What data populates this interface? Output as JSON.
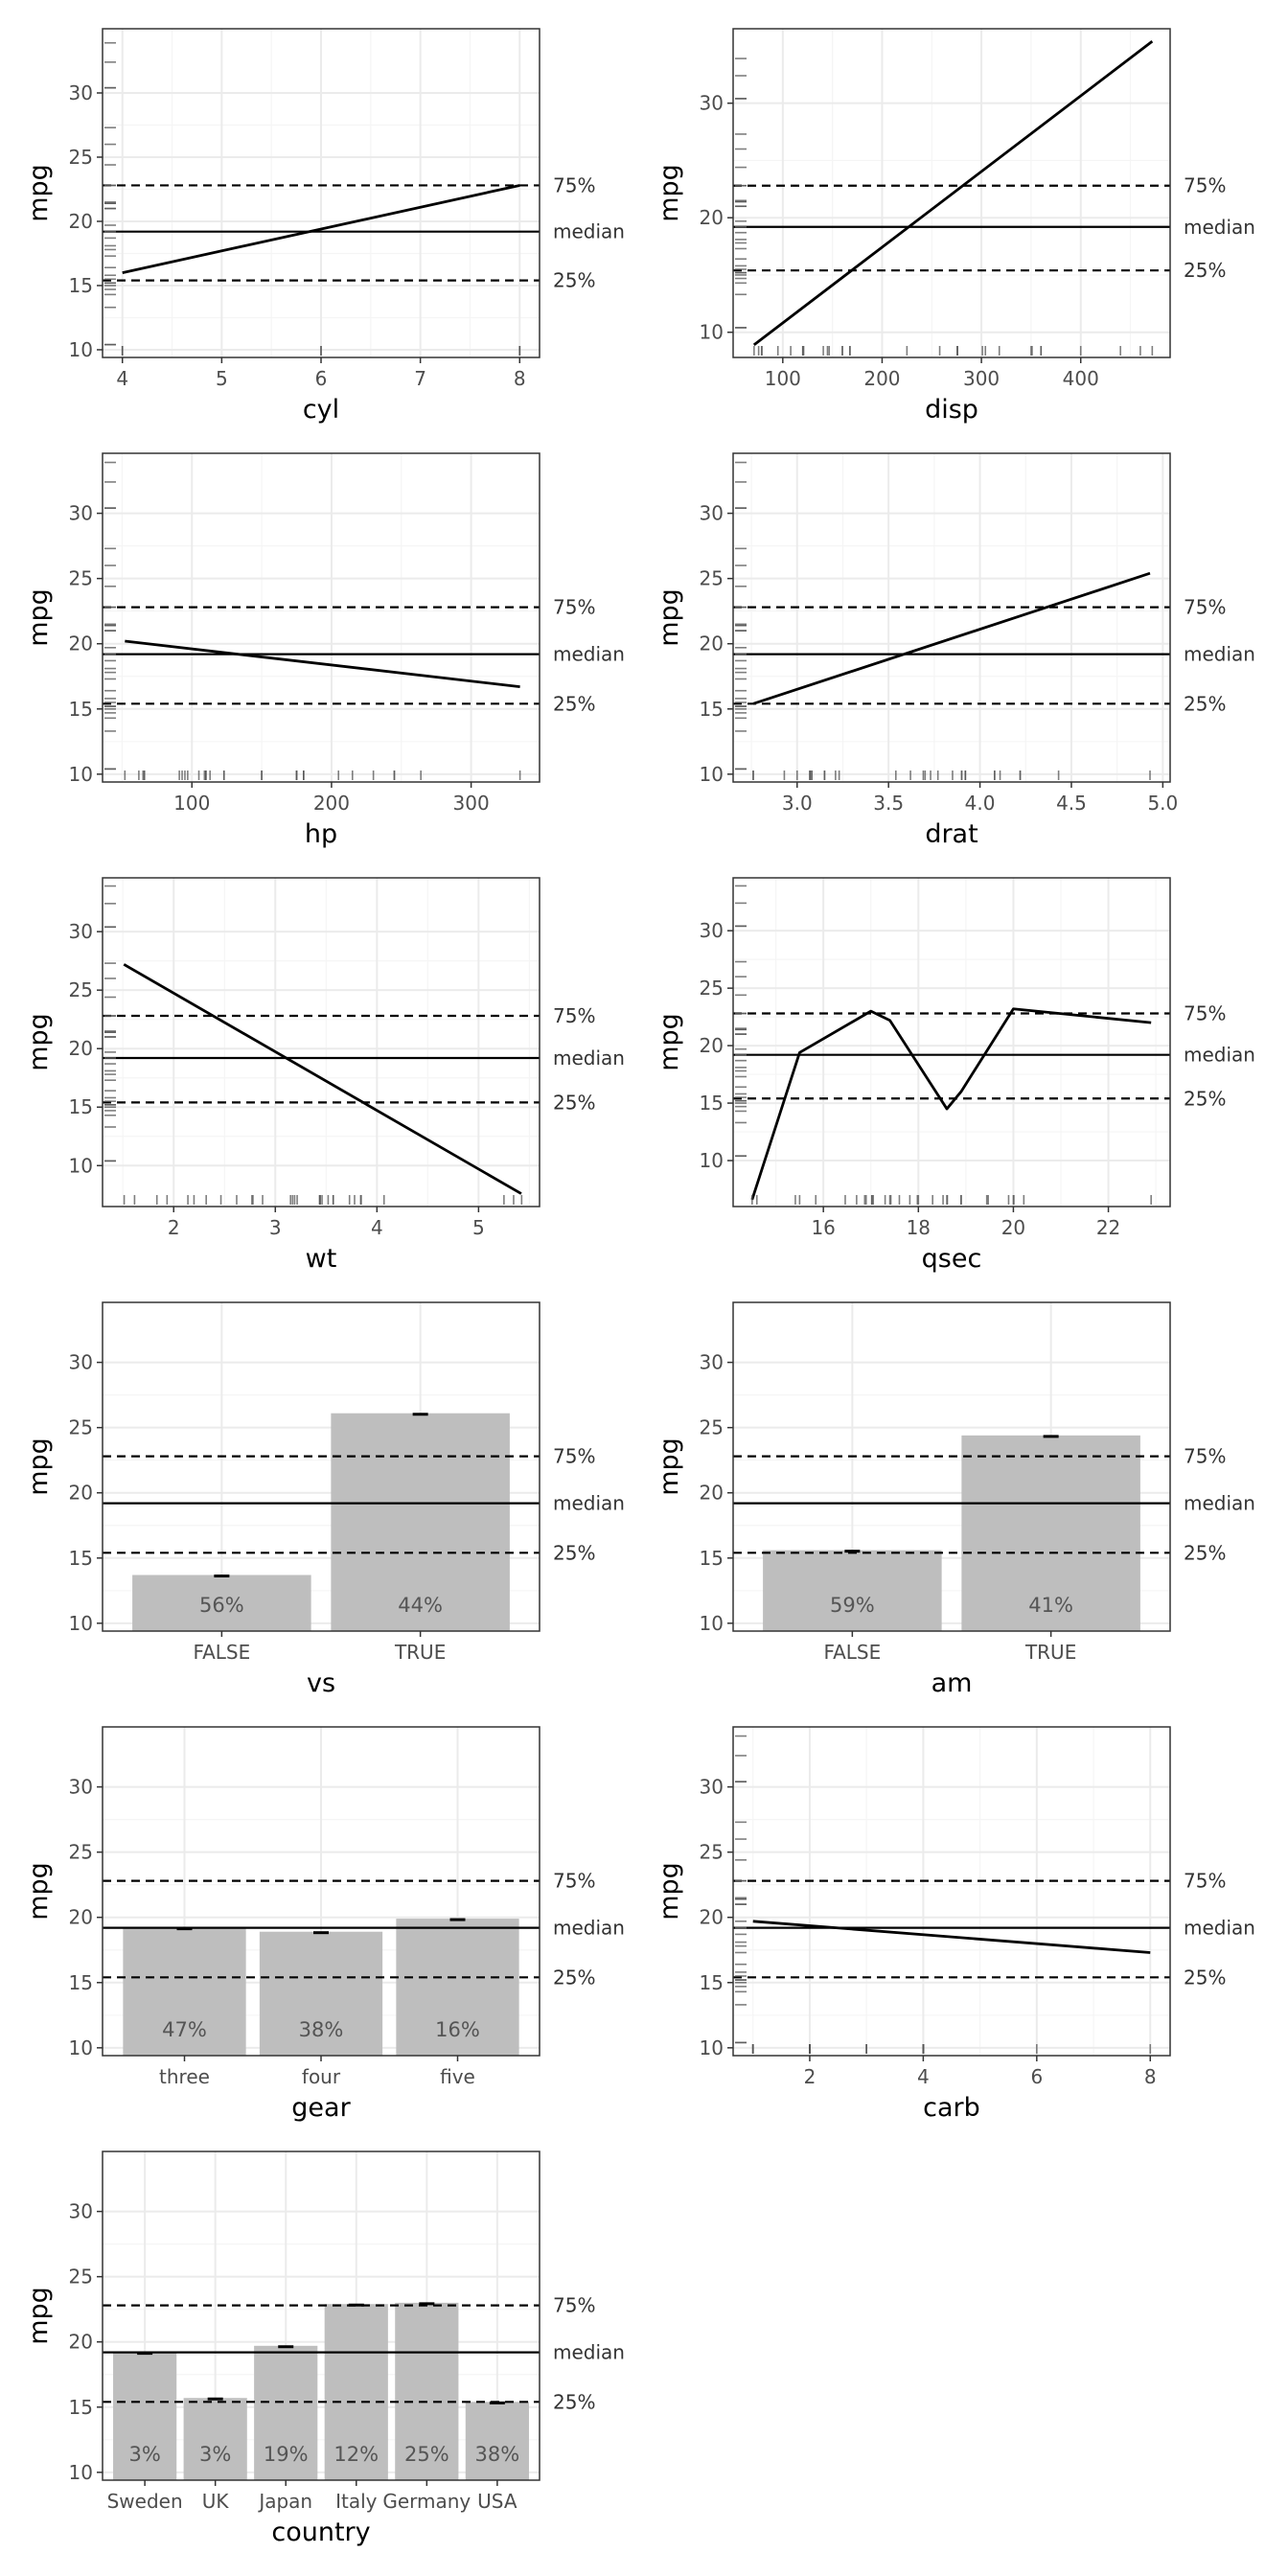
{
  "ref_labels": {
    "q75": "75%",
    "median": "median",
    "q25": "25%"
  },
  "colors": {
    "bar": "#bebebe",
    "line": "#000000",
    "grid_major": "#ebebeb",
    "grid_minor": "#f5f5f5",
    "border": "#333333",
    "rug": "#555555"
  },
  "chart_data": [
    {
      "type": "line",
      "xlabel": "cyl",
      "ylabel": "mpg",
      "xlim": [
        3.8,
        8.2
      ],
      "ylim": [
        9.4,
        35.0
      ],
      "xticks": [
        4,
        5,
        6,
        7,
        8
      ],
      "xtick_labels": [
        "4",
        "5",
        "6",
        "7",
        "8"
      ],
      "yticks": [
        10,
        15,
        20,
        25,
        30
      ],
      "ytick_labels": [
        "10",
        "15",
        "20",
        "25",
        "30"
      ],
      "x": [
        4,
        8
      ],
      "y": [
        16.0,
        22.8
      ],
      "ref_lines": {
        "q75": 22.8,
        "median": 19.2,
        "q25": 15.4
      },
      "rug_x": [
        4,
        4,
        4,
        6,
        6,
        8,
        8,
        8
      ],
      "rug_y": [
        10.4,
        10.4,
        13.3,
        14.3,
        14.7,
        15.0,
        15.2,
        15.2,
        15.5,
        15.8,
        16.4,
        17.3,
        17.8,
        18.1,
        18.7,
        19.2,
        19.2,
        19.7,
        21.0,
        21.0,
        21.4,
        21.4,
        21.5,
        22.8,
        22.8,
        24.4,
        26.0,
        27.3,
        30.4,
        30.4,
        32.4,
        33.9
      ]
    },
    {
      "type": "line",
      "xlabel": "disp",
      "ylabel": "mpg",
      "xlim": [
        50,
        490
      ],
      "ylim": [
        7.8,
        36.5
      ],
      "xticks": [
        100,
        200,
        300,
        400
      ],
      "xtick_labels": [
        "100",
        "200",
        "300",
        "400"
      ],
      "yticks": [
        10,
        20,
        30
      ],
      "ytick_labels": [
        "10",
        "20",
        "30"
      ],
      "x": [
        71,
        472
      ],
      "y": [
        8.9,
        35.4
      ],
      "ref_lines": {
        "q75": 22.8,
        "median": 19.2,
        "q25": 15.4
      },
      "rug_x": [
        71.1,
        75.7,
        78.7,
        79,
        95.1,
        108,
        120.1,
        120.3,
        121,
        140.8,
        145,
        146.7,
        160,
        160,
        167.6,
        167.6,
        225,
        258,
        275.8,
        275.8,
        275.8,
        301,
        304,
        318,
        350,
        351,
        360,
        360,
        400,
        440,
        460,
        472
      ],
      "rug_y": [
        10.4,
        10.4,
        13.3,
        14.3,
        14.7,
        15.0,
        15.2,
        15.2,
        15.5,
        15.8,
        16.4,
        17.3,
        17.8,
        18.1,
        18.7,
        19.2,
        19.2,
        19.7,
        21.0,
        21.0,
        21.4,
        21.4,
        21.5,
        22.8,
        22.8,
        24.4,
        26.0,
        27.3,
        30.4,
        30.4,
        32.4,
        33.9
      ]
    },
    {
      "type": "line",
      "xlabel": "hp",
      "ylabel": "mpg",
      "xlim": [
        36,
        349
      ],
      "ylim": [
        9.4,
        34.6
      ],
      "xticks": [
        100,
        200,
        300
      ],
      "xtick_labels": [
        "100",
        "200",
        "300"
      ],
      "yticks": [
        10,
        15,
        20,
        25,
        30
      ],
      "ytick_labels": [
        "10",
        "15",
        "20",
        "25",
        "30"
      ],
      "x": [
        52,
        335
      ],
      "y": [
        20.2,
        16.7
      ],
      "ref_lines": {
        "q75": 22.8,
        "median": 19.2,
        "q25": 15.4
      },
      "rug_x": [
        52,
        62,
        65,
        66,
        66,
        91,
        93,
        95,
        97,
        105,
        109,
        110,
        110,
        110,
        113,
        123,
        123,
        150,
        150,
        175,
        175,
        175,
        180,
        180,
        180,
        205,
        215,
        230,
        245,
        245,
        264,
        335
      ],
      "rug_y": [
        10.4,
        10.4,
        13.3,
        14.3,
        14.7,
        15.0,
        15.2,
        15.2,
        15.5,
        15.8,
        16.4,
        17.3,
        17.8,
        18.1,
        18.7,
        19.2,
        19.2,
        19.7,
        21.0,
        21.0,
        21.4,
        21.4,
        21.5,
        22.8,
        22.8,
        24.4,
        26.0,
        27.3,
        30.4,
        30.4,
        32.4,
        33.9
      ]
    },
    {
      "type": "line",
      "xlabel": "drat",
      "ylabel": "mpg",
      "xlim": [
        2.65,
        5.04
      ],
      "ylim": [
        9.4,
        34.6
      ],
      "xticks": [
        3.0,
        3.5,
        4.0,
        4.5,
        5.0
      ],
      "xtick_labels": [
        "3.0",
        "3.5",
        "4.0",
        "4.5",
        "5.0"
      ],
      "yticks": [
        10,
        15,
        20,
        25,
        30
      ],
      "ytick_labels": [
        "10",
        "15",
        "20",
        "25",
        "30"
      ],
      "x": [
        2.76,
        4.93
      ],
      "y": [
        15.4,
        25.4
      ],
      "ref_lines": {
        "q75": 22.8,
        "median": 19.2,
        "q25": 15.4
      },
      "rug_x": [
        2.76,
        2.76,
        2.93,
        3.0,
        3.07,
        3.07,
        3.07,
        3.08,
        3.08,
        3.15,
        3.15,
        3.21,
        3.23,
        3.54,
        3.62,
        3.69,
        3.7,
        3.73,
        3.77,
        3.85,
        3.9,
        3.9,
        3.92,
        3.92,
        3.92,
        4.08,
        4.08,
        4.11,
        4.22,
        4.22,
        4.43,
        4.93
      ],
      "rug_y": [
        10.4,
        10.4,
        13.3,
        14.3,
        14.7,
        15.0,
        15.2,
        15.2,
        15.5,
        15.8,
        16.4,
        17.3,
        17.8,
        18.1,
        18.7,
        19.2,
        19.2,
        19.7,
        21.0,
        21.0,
        21.4,
        21.4,
        21.5,
        22.8,
        22.8,
        24.4,
        26.0,
        27.3,
        30.4,
        30.4,
        32.4,
        33.9
      ]
    },
    {
      "type": "line",
      "xlabel": "wt",
      "ylabel": "mpg",
      "xlim": [
        1.3,
        5.6
      ],
      "ylim": [
        6.5,
        34.6
      ],
      "xticks": [
        2,
        3,
        4,
        5
      ],
      "xtick_labels": [
        "2",
        "3",
        "4",
        "5"
      ],
      "yticks": [
        10,
        15,
        20,
        25,
        30
      ],
      "ytick_labels": [
        "10",
        "15",
        "20",
        "25",
        "30"
      ],
      "x": [
        1.51,
        5.42
      ],
      "y": [
        27.2,
        7.6
      ],
      "ref_lines": {
        "q75": 22.8,
        "median": 19.2,
        "q25": 15.4
      },
      "rug_x": [
        1.513,
        1.615,
        1.835,
        1.935,
        2.14,
        2.2,
        2.32,
        2.465,
        2.62,
        2.77,
        2.78,
        2.875,
        3.15,
        3.17,
        3.19,
        3.215,
        3.435,
        3.44,
        3.44,
        3.44,
        3.46,
        3.52,
        3.57,
        3.57,
        3.73,
        3.78,
        3.84,
        3.845,
        4.07,
        5.25,
        5.345,
        5.424
      ],
      "rug_y": [
        10.4,
        10.4,
        13.3,
        14.3,
        14.7,
        15.0,
        15.2,
        15.2,
        15.5,
        15.8,
        16.4,
        17.3,
        17.8,
        18.1,
        18.7,
        19.2,
        19.2,
        19.7,
        21.0,
        21.0,
        21.4,
        21.4,
        21.5,
        22.8,
        22.8,
        24.4,
        26.0,
        27.3,
        30.4,
        30.4,
        32.4,
        33.9
      ]
    },
    {
      "type": "line",
      "xlabel": "qsec",
      "ylabel": "mpg",
      "xlim": [
        14.1,
        23.3
      ],
      "ylim": [
        6.0,
        34.6
      ],
      "xticks": [
        16,
        18,
        20,
        22
      ],
      "xtick_labels": [
        "16",
        "18",
        "20",
        "22"
      ],
      "yticks": [
        10,
        15,
        20,
        25,
        30
      ],
      "ytick_labels": [
        "10",
        "15",
        "20",
        "25",
        "30"
      ],
      "x": [
        14.5,
        15.5,
        17.0,
        17.4,
        18.6,
        18.9,
        20.0,
        22.9
      ],
      "y": [
        6.6,
        19.4,
        23.0,
        22.2,
        14.5,
        16.0,
        23.2,
        22.0
      ],
      "ref_lines": {
        "q75": 22.8,
        "median": 19.2,
        "q25": 15.4
      },
      "rug_x": [
        14.5,
        14.6,
        15.41,
        15.5,
        15.84,
        16.46,
        16.7,
        16.87,
        16.9,
        17.02,
        17.02,
        17.05,
        17.3,
        17.4,
        17.42,
        17.6,
        17.82,
        17.98,
        18.0,
        18.3,
        18.52,
        18.6,
        18.61,
        18.9,
        18.9,
        19.44,
        19.47,
        19.9,
        20.0,
        20.01,
        20.22,
        22.9
      ],
      "rug_y": [
        10.4,
        10.4,
        13.3,
        14.3,
        14.7,
        15.0,
        15.2,
        15.2,
        15.5,
        15.8,
        16.4,
        17.3,
        17.8,
        18.1,
        18.7,
        19.2,
        19.2,
        19.7,
        21.0,
        21.0,
        21.4,
        21.4,
        21.5,
        22.8,
        22.8,
        24.4,
        26.0,
        27.3,
        30.4,
        30.4,
        32.4,
        33.9
      ]
    },
    {
      "type": "bar",
      "xlabel": "vs",
      "ylabel": "mpg",
      "ylim": [
        9.4,
        34.6
      ],
      "yticks": [
        10,
        15,
        20,
        25,
        30
      ],
      "ytick_labels": [
        "10",
        "15",
        "20",
        "25",
        "30"
      ],
      "categories": [
        "FALSE",
        "TRUE"
      ],
      "values": [
        13.7,
        26.1
      ],
      "percent_labels": [
        "56%",
        "44%"
      ],
      "ref_lines": {
        "q75": 22.8,
        "median": 19.2,
        "q25": 15.4
      }
    },
    {
      "type": "bar",
      "xlabel": "am",
      "ylabel": "mpg",
      "ylim": [
        9.4,
        34.6
      ],
      "yticks": [
        10,
        15,
        20,
        25,
        30
      ],
      "ytick_labels": [
        "10",
        "15",
        "20",
        "25",
        "30"
      ],
      "categories": [
        "FALSE",
        "TRUE"
      ],
      "values": [
        15.6,
        24.4
      ],
      "percent_labels": [
        "59%",
        "41%"
      ],
      "ref_lines": {
        "q75": 22.8,
        "median": 19.2,
        "q25": 15.4
      }
    },
    {
      "type": "bar",
      "xlabel": "gear",
      "ylabel": "mpg",
      "ylim": [
        9.4,
        34.6
      ],
      "yticks": [
        10,
        15,
        20,
        25,
        30
      ],
      "ytick_labels": [
        "10",
        "15",
        "20",
        "25",
        "30"
      ],
      "categories": [
        "three",
        "four",
        "five"
      ],
      "values": [
        19.2,
        18.9,
        19.9
      ],
      "percent_labels": [
        "47%",
        "38%",
        "16%"
      ],
      "ref_lines": {
        "q75": 22.8,
        "median": 19.2,
        "q25": 15.4
      }
    },
    {
      "type": "line",
      "xlabel": "carb",
      "ylabel": "mpg",
      "xlim": [
        0.65,
        8.35
      ],
      "ylim": [
        9.4,
        34.6
      ],
      "xticks": [
        2,
        4,
        6,
        8
      ],
      "xtick_labels": [
        "2",
        "4",
        "6",
        "8"
      ],
      "yticks": [
        10,
        15,
        20,
        25,
        30
      ],
      "ytick_labels": [
        "10",
        "15",
        "20",
        "25",
        "30"
      ],
      "x": [
        1,
        8
      ],
      "y": [
        19.7,
        17.3
      ],
      "ref_lines": {
        "q75": 22.8,
        "median": 19.2,
        "q25": 15.4
      },
      "rug_x": [
        1,
        1,
        1,
        1,
        1,
        1,
        1,
        2,
        2,
        2,
        2,
        2,
        2,
        2,
        2,
        2,
        2,
        3,
        3,
        3,
        4,
        4,
        4,
        4,
        4,
        4,
        4,
        4,
        4,
        4,
        6,
        8
      ],
      "rug_y": [
        10.4,
        10.4,
        13.3,
        14.3,
        14.7,
        15.0,
        15.2,
        15.2,
        15.5,
        15.8,
        16.4,
        17.3,
        17.8,
        18.1,
        18.7,
        19.2,
        19.2,
        19.7,
        21.0,
        21.0,
        21.4,
        21.4,
        21.5,
        22.8,
        22.8,
        24.4,
        26.0,
        27.3,
        30.4,
        30.4,
        32.4,
        33.9
      ]
    },
    {
      "type": "bar",
      "xlabel": "country",
      "ylabel": "mpg",
      "ylim": [
        9.4,
        34.6
      ],
      "yticks": [
        10,
        15,
        20,
        25,
        30
      ],
      "ytick_labels": [
        "10",
        "15",
        "20",
        "25",
        "30"
      ],
      "categories": [
        "Sweden",
        "UK",
        "Japan",
        "Italy",
        "Germany",
        "USA"
      ],
      "values": [
        19.2,
        15.7,
        19.7,
        22.9,
        23.0,
        15.4
      ],
      "percent_labels": [
        "3%",
        "3%",
        "19%",
        "12%",
        "25%",
        "38%"
      ],
      "ref_lines": {
        "q75": 22.8,
        "median": 19.2,
        "q25": 15.4
      }
    }
  ]
}
